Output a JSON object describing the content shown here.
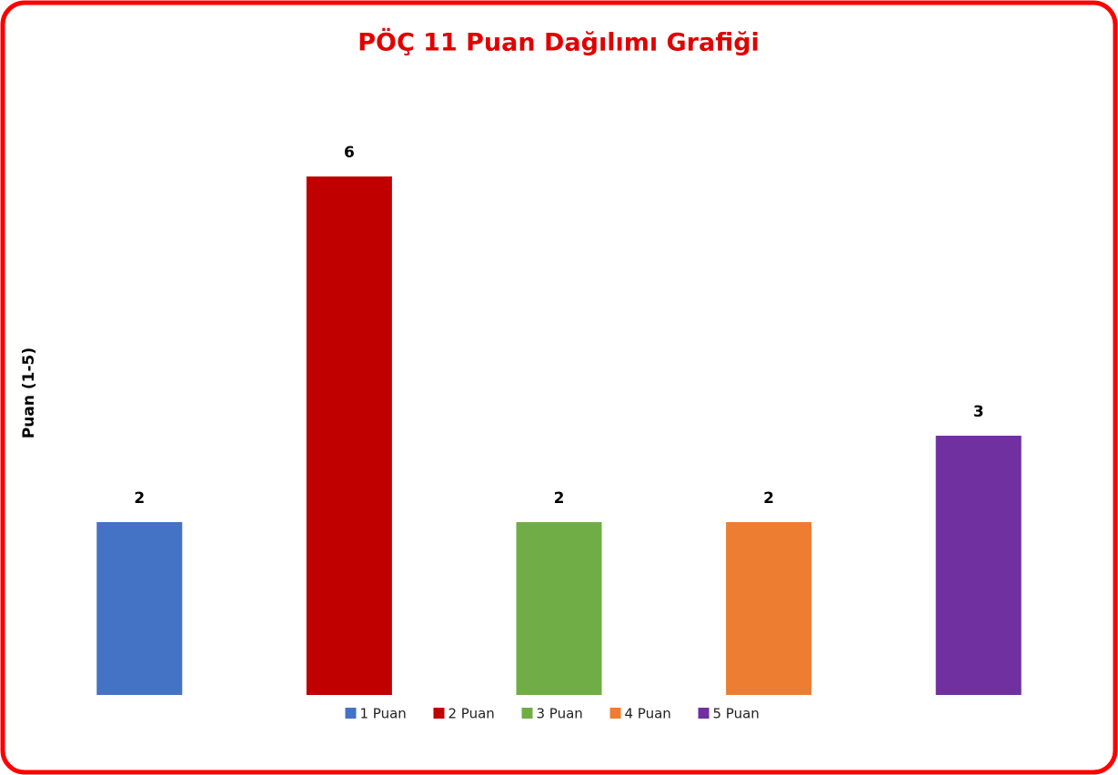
{
  "chart_data": {
    "type": "bar",
    "title": "PÖÇ 11 Puan Dağılımı Grafiği",
    "y_label": "Puan (1-5)",
    "categories": [
      "1 Puan",
      "2 Puan",
      "3 Puan",
      "4 Puan",
      "5 Puan"
    ],
    "values": [
      2,
      6,
      2,
      2,
      3
    ],
    "colors": [
      "#4472c4",
      "#c00000",
      "#70ad47",
      "#ed7d31",
      "#7030a0"
    ],
    "ylim": [
      0,
      7
    ],
    "legend": "bottom"
  }
}
